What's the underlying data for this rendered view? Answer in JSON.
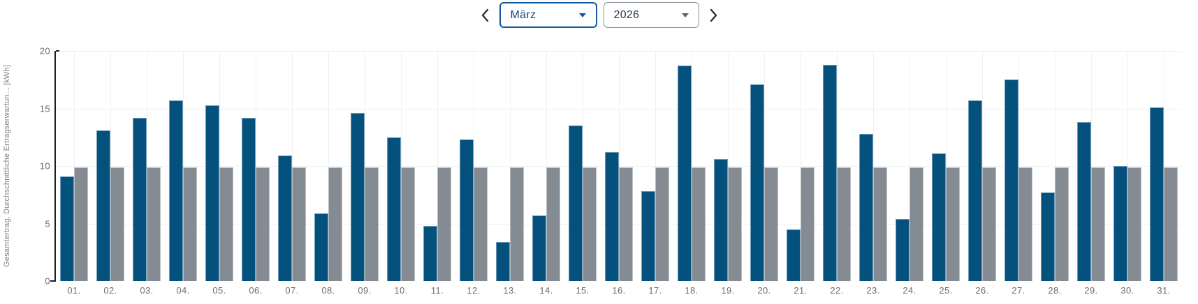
{
  "controls": {
    "prev_icon": "chevron-left-icon",
    "next_icon": "chevron-right-icon",
    "month_value": "März",
    "year_value": "2026"
  },
  "colors": {
    "bar_total": "#05517e",
    "bar_expected": "#848b93",
    "accent_blue": "#0e5aa7",
    "axis_line": "#1a1e24",
    "tick_text": "#666d75",
    "grid_line": "#f0f0f4"
  },
  "chart_data": {
    "type": "bar",
    "title": "",
    "xlabel": "",
    "ylabel": "Gesamtertrag, Durchschnittliche Ertragserwartun... [kWh]",
    "ylim": [
      0,
      20
    ],
    "yticks": [
      0,
      5,
      10,
      15,
      20
    ],
    "grid": true,
    "legend_position": "none",
    "categories": [
      "01.",
      "02.",
      "03.",
      "04.",
      "05.",
      "06.",
      "07.",
      "08.",
      "09.",
      "10.",
      "11.",
      "12.",
      "13.",
      "14.",
      "15.",
      "16.",
      "17.",
      "18.",
      "19.",
      "20.",
      "21.",
      "22.",
      "23.",
      "24.",
      "25.",
      "26.",
      "27.",
      "28.",
      "29.",
      "30.",
      "31."
    ],
    "series": [
      {
        "name": "Gesamtertrag",
        "color": "#05517e",
        "values": [
          9.1,
          13.1,
          14.2,
          15.7,
          15.3,
          14.2,
          10.9,
          5.9,
          14.6,
          12.5,
          4.8,
          12.3,
          3.4,
          5.7,
          13.5,
          11.2,
          7.8,
          18.7,
          10.6,
          17.1,
          4.5,
          18.8,
          12.8,
          5.4,
          11.1,
          15.7,
          17.5,
          7.7,
          13.8,
          10.0,
          15.1
        ]
      },
      {
        "name": "Durchschnittliche Ertragserwartung",
        "color": "#848b93",
        "values": [
          9.9,
          9.9,
          9.9,
          9.9,
          9.9,
          9.9,
          9.9,
          9.9,
          9.9,
          9.9,
          9.9,
          9.9,
          9.9,
          9.9,
          9.9,
          9.9,
          9.9,
          9.9,
          9.9,
          9.9,
          9.9,
          9.9,
          9.9,
          9.9,
          9.9,
          9.9,
          9.9,
          9.9,
          9.9,
          9.9,
          9.9
        ]
      }
    ]
  }
}
